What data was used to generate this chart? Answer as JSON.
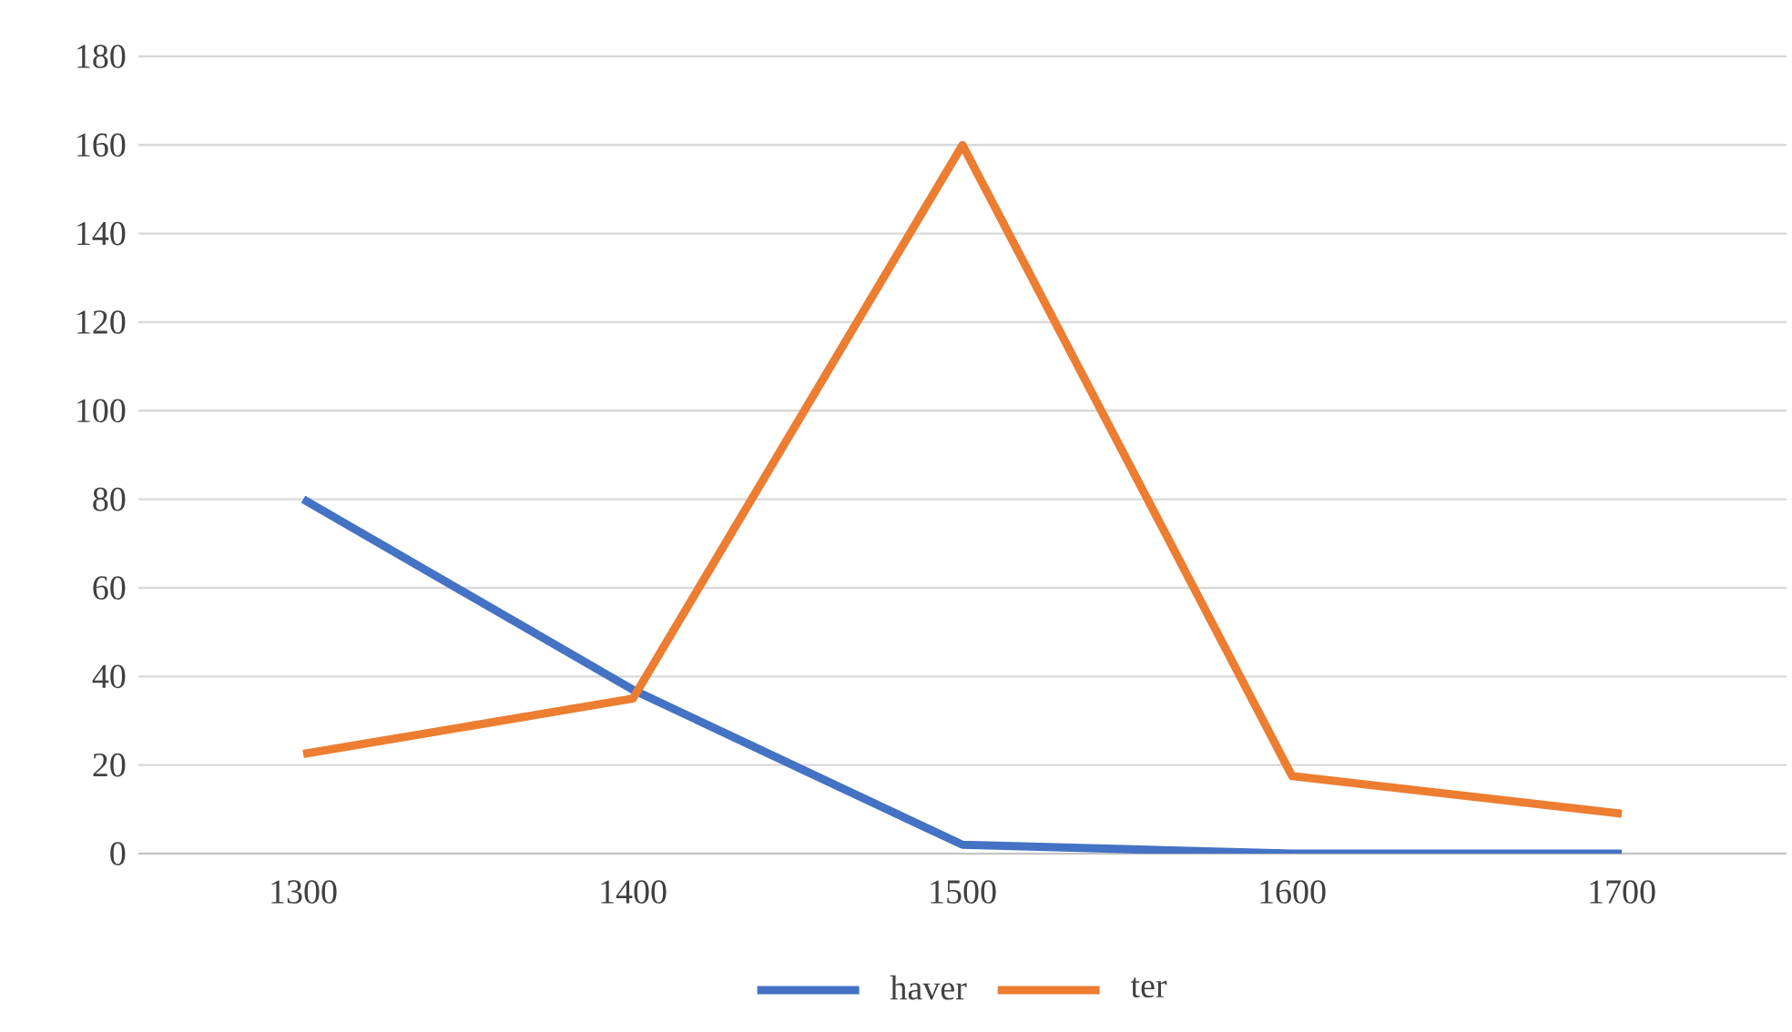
{
  "chart_data": {
    "type": "line",
    "categories": [
      "1300",
      "1400",
      "1500",
      "1600",
      "1700"
    ],
    "series": [
      {
        "name": "haver",
        "color": "#4472c4",
        "values": [
          80,
          37,
          2,
          0,
          0
        ]
      },
      {
        "name": "ter",
        "color": "#ed7d31",
        "values": [
          22.5,
          35,
          160,
          17.5,
          9
        ]
      }
    ],
    "ylim": [
      0,
      180
    ],
    "yticks": [
      0,
      20,
      40,
      60,
      80,
      100,
      120,
      140,
      160,
      180
    ],
    "grid": "y",
    "legend": "bottom",
    "marker": "none",
    "line_style": "solid"
  }
}
